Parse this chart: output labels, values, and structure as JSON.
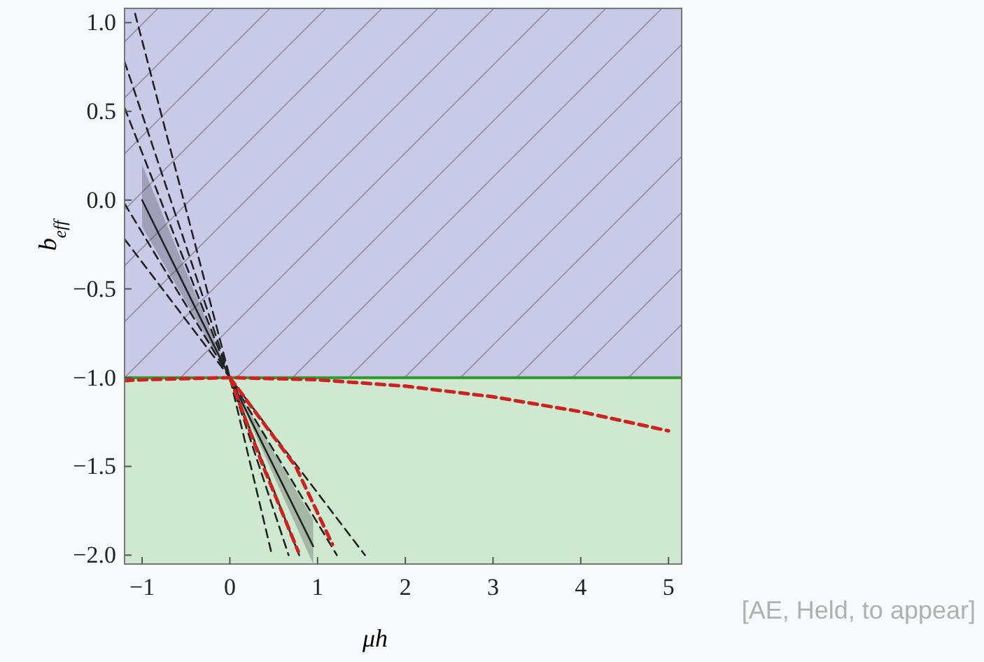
{
  "chart_data": {
    "type": "line",
    "xlabel": "μh",
    "ylabel": "b$_{eff}$",
    "xlim": [
      -1.2,
      5.15
    ],
    "ylim": [
      -2.05,
      1.08
    ],
    "xticks": [
      -1,
      0,
      1,
      2,
      3,
      4,
      5
    ],
    "yticks": [
      {
        "value": 1,
        "label": "1.0"
      },
      {
        "value": 0.5,
        "label": "0.5"
      },
      {
        "value": 0,
        "label": "0.0"
      },
      {
        "value": -0.5,
        "label": "−0.5"
      },
      {
        "value": -1,
        "label": "−1.0"
      },
      {
        "value": -1.5,
        "label": "−1.5"
      },
      {
        "value": -2,
        "label": "−2.0"
      }
    ],
    "bands": [
      {
        "axis": "y",
        "from": -1,
        "to": 1.08,
        "color": "#c9c9e8"
      },
      {
        "axis": "y",
        "from": -2.05,
        "to": -1,
        "color": "#cfe8d0"
      }
    ],
    "ref_lines": [
      {
        "axis": "y",
        "value": -1,
        "color": "#2a9a2a",
        "line_style": "solid"
      }
    ],
    "series": [
      {
        "color": "#222222",
        "line_style": "solid",
        "x": [
          -1,
          0,
          0.95
        ],
        "values": [
          0,
          -1,
          -1.95
        ],
        "lower": [
          -0.15,
          -1,
          -2.05
        ],
        "upper": [
          0.2,
          -1,
          -1.8
        ]
      },
      {
        "color": "#222222",
        "line_style": "dashed",
        "x": [
          -1.2,
          0,
          1.54
        ],
        "values": [
          -0.22,
          -1,
          -2
        ]
      },
      {
        "color": "#222222",
        "line_style": "dashed",
        "x": [
          -1.2,
          0,
          1.22
        ],
        "values": [
          -0.02,
          -1,
          -2
        ]
      },
      {
        "color": "#222222",
        "line_style": "dashed",
        "x": [
          -1.2,
          0,
          0.79
        ],
        "values": [
          0.52,
          -1,
          -2
        ]
      },
      {
        "color": "#222222",
        "line_style": "dashed",
        "x": [
          -1.2,
          0,
          0.67
        ],
        "values": [
          0.78,
          -1,
          -2
        ]
      },
      {
        "color": "#222222",
        "line_style": "dashed",
        "x": [
          -1.08,
          0,
          0.48
        ],
        "values": [
          1.05,
          -1,
          -2
        ]
      },
      {
        "color": "#cc2222",
        "line_style": "dashed",
        "x": [
          0,
          0.38,
          0.78
        ],
        "values": [
          -1,
          -1.5,
          -1.98
        ]
      },
      {
        "color": "#cc2222",
        "line_style": "dashed",
        "x": [
          0,
          0.75,
          1.17
        ],
        "values": [
          -1,
          -1.5,
          -1.94
        ]
      },
      {
        "color": "#cc2222",
        "line_style": "dashed",
        "x": [
          -1.2,
          -1,
          0,
          1,
          2,
          3,
          4,
          5
        ],
        "values": [
          -1.017,
          -1.012,
          -1,
          -1.012,
          -1.048,
          -1.108,
          -1.192,
          -1.3
        ]
      }
    ],
    "grid": false,
    "annotations": [
      "[AE, Held, to appear]"
    ]
  }
}
